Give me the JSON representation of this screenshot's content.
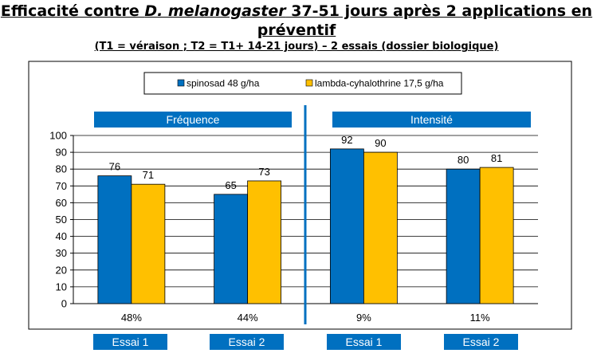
{
  "title_line1_pre": "Efficacité contre ",
  "title_line1_italic": "D. melanogaster",
  "title_line1_post": " 37-51 jours après 2 applications en",
  "title_line2": "préventif",
  "subtitle": "(T1 = véraison ; T2 = T1+ 14-21 jours) – 2 essais (dossier biologique)",
  "panel_labels": {
    "left": "Fréquence",
    "right": "Intensité"
  },
  "essai_labels": [
    "Essai 1",
    "Essai 2",
    "Essai 1",
    "Essai 2"
  ],
  "colors": {
    "spinosad": "#0070C0",
    "lambda": "#FFC000",
    "divider": "#0070C0"
  },
  "chart_data": {
    "type": "bar",
    "categories": [
      "48%",
      "44%",
      "9%",
      "11%"
    ],
    "series": [
      {
        "name": "spinosad 48 g/ha",
        "values": [
          76,
          65,
          92,
          80
        ]
      },
      {
        "name": "lambda-cyhalothrine 17,5 g/ha",
        "values": [
          71,
          73,
          90,
          81
        ]
      }
    ],
    "ylim": [
      0,
      100
    ],
    "yticks": [
      0,
      10,
      20,
      30,
      40,
      50,
      60,
      70,
      80,
      90,
      100
    ],
    "grid": true,
    "legend_position": "top"
  }
}
